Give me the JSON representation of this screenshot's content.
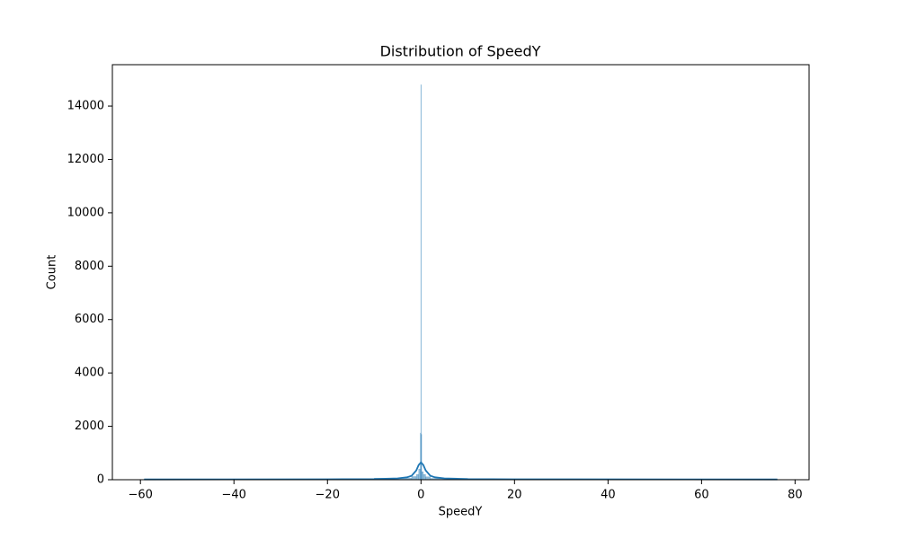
{
  "chart_data": {
    "type": "histogram",
    "title": "Distribution of SpeedY",
    "xlabel": "SpeedY",
    "ylabel": "Count",
    "bins": [
      -59.2,
      -10,
      -2,
      -1,
      -0.5,
      -0.15,
      -0.05,
      0.05,
      0.15,
      0.5,
      1,
      2,
      10,
      76.2
    ],
    "counts": [
      30,
      60,
      120,
      200,
      400,
      1750,
      14800,
      1700,
      300,
      200,
      110,
      50,
      20
    ],
    "color": "#1f77b4",
    "kde": {
      "x": [
        -59.2,
        -20,
        -10,
        -5,
        -3,
        -2,
        -1,
        -0.5,
        0,
        0.5,
        1,
        2,
        3,
        5,
        10,
        20,
        76.2
      ],
      "y": [
        10,
        15,
        25,
        50,
        90,
        150,
        350,
        550,
        650,
        550,
        350,
        150,
        90,
        50,
        25,
        15,
        10
      ]
    },
    "xlim": [
      -66,
      83
    ],
    "ylim": [
      0,
      15550
    ],
    "xticks": [
      {
        "value": -60,
        "label": "−60"
      },
      {
        "value": -40,
        "label": "−40"
      },
      {
        "value": -20,
        "label": "−20"
      },
      0,
      20,
      40,
      60,
      80
    ],
    "yticks": [
      0,
      2000,
      4000,
      6000,
      8000,
      10000,
      12000,
      14000
    ]
  }
}
